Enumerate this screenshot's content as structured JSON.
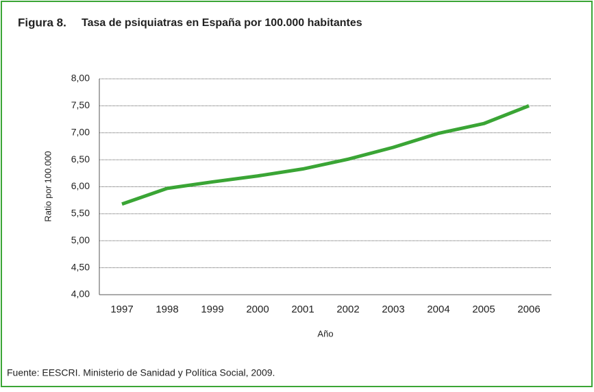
{
  "chart_data": {
    "type": "line",
    "figure_label": "Figura 8.",
    "title": "Tasa de psiquiatras en España por 100.000 habitantes",
    "categories": [
      "1997",
      "1998",
      "1999",
      "2000",
      "2001",
      "2002",
      "2003",
      "2004",
      "2005",
      "2006"
    ],
    "series": [
      {
        "name": "Ratio por 100.000",
        "color": "#3aa535",
        "values": [
          5.68,
          5.97,
          6.09,
          6.2,
          6.33,
          6.51,
          6.73,
          6.99,
          7.17,
          7.5
        ]
      }
    ],
    "ylabel": "Ratio por 100.000",
    "xlabel": "Año",
    "ylim": [
      4,
      8
    ],
    "yticks": [
      {
        "value": 4,
        "label": "4,00"
      },
      {
        "value": 4.5,
        "label": "4,50"
      },
      {
        "value": 5,
        "label": "5,00"
      },
      {
        "value": 5.5,
        "label": "5,50"
      },
      {
        "value": 6,
        "label": "6,00"
      },
      {
        "value": 6.5,
        "label": "6,50"
      },
      {
        "value": 7,
        "label": "7,00"
      },
      {
        "value": 7.5,
        "label": "7,50"
      },
      {
        "value": 8,
        "label": "8,00"
      }
    ],
    "grid": true,
    "source": "Fuente: EESCRI. Ministerio de Sanidad y Política Social, 2009."
  }
}
